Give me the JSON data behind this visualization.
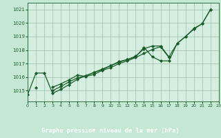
{
  "title": "Graphe pression niveau de la mer (hPa)",
  "bg_color": "#c5e8d5",
  "plot_bg_color": "#d4eee0",
  "grid_color": "#9dbfaa",
  "line_color": "#1a5c2a",
  "label_bg": "#4a8c5c",
  "xlim": [
    0,
    23
  ],
  "ylim": [
    1014.2,
    1021.5
  ],
  "yticks": [
    1015,
    1016,
    1017,
    1018,
    1019,
    1020,
    1021
  ],
  "xticks": [
    0,
    1,
    2,
    3,
    4,
    5,
    6,
    7,
    8,
    9,
    10,
    11,
    12,
    13,
    14,
    15,
    16,
    17,
    18,
    19,
    20,
    21,
    22,
    23
  ],
  "s1": [
    1014.7,
    1016.3,
    1016.3,
    1014.8,
    1015.1,
    1015.45,
    1015.85,
    1016.1,
    1016.35,
    1016.6,
    1016.85,
    1017.1,
    1017.3,
    1017.5,
    1018.2,
    1017.5,
    1017.2,
    1017.2,
    1018.5,
    1019.0,
    1019.6,
    1019.95,
    1021.0,
    null
  ],
  "s2": [
    null,
    1015.2,
    null,
    1015.25,
    1015.5,
    1015.8,
    1016.15,
    1016.05,
    1016.2,
    1016.5,
    1016.7,
    1017.0,
    1017.2,
    1017.45,
    1017.75,
    1018.05,
    1018.25,
    1017.45,
    null,
    null,
    null,
    null,
    null,
    null
  ],
  "s3": [
    null,
    null,
    null,
    1015.0,
    1015.3,
    1015.65,
    1015.95,
    1016.1,
    1016.35,
    1016.55,
    1016.85,
    1017.15,
    1017.3,
    1017.55,
    1018.1,
    1018.3,
    1018.3,
    1017.5,
    1018.5,
    1019.0,
    1019.55,
    1019.95,
    1021.0,
    null
  ],
  "s4": [
    null,
    null,
    null,
    null,
    null,
    null,
    null,
    null,
    null,
    null,
    null,
    null,
    null,
    null,
    null,
    null,
    null,
    null,
    1018.5,
    1019.0,
    1019.55,
    1019.95,
    1021.0,
    null
  ]
}
